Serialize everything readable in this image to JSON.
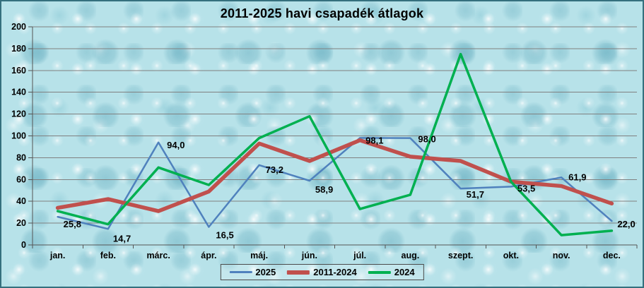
{
  "window": {
    "title": "2011-2025 havi csapadék átlagok"
  },
  "colors": {
    "series_2025": "#4F81BD",
    "series_2011_2024": "#C0504D",
    "series_2024": "#00B050",
    "gridline": "#808080",
    "axis": "#555555",
    "text": "#000000",
    "background": "#b7e2e9",
    "frame_border": "#35707e"
  },
  "chart_data": {
    "type": "line",
    "title": "2011-2025 havi csapadék átlagok",
    "categories": [
      "jan.",
      "feb.",
      "márc.",
      "ápr.",
      "máj.",
      "jún.",
      "júl.",
      "aug.",
      "szept.",
      "okt.",
      "nov.",
      "dec."
    ],
    "series": [
      {
        "name": "2025",
        "color": "#4F81BD",
        "stroke_width": 2.5,
        "values": [
          25.8,
          14.7,
          94.0,
          16.5,
          73.2,
          58.9,
          98.1,
          98.0,
          51.7,
          53.5,
          61.9,
          22.0
        ],
        "point_labels": [
          "25,8",
          "14,7",
          "94,0",
          "16,5",
          "73,2",
          "58,9",
          "98,1",
          "98,0",
          "51,7",
          "53,5",
          "61,9",
          "22,0"
        ]
      },
      {
        "name": "2011-2024",
        "color": "#C0504D",
        "stroke_width": 5.5,
        "values": [
          34,
          42,
          31,
          49,
          93,
          77,
          96,
          81,
          77,
          58,
          54,
          38
        ],
        "point_labels": []
      },
      {
        "name": "2024",
        "color": "#00B050",
        "stroke_width": 3.5,
        "values": [
          31,
          19,
          71,
          55,
          98,
          118,
          33,
          46,
          175,
          58,
          9,
          13
        ],
        "point_labels": []
      }
    ],
    "xlabel": "",
    "ylabel": "",
    "ylim": [
      0,
      200
    ],
    "ytick_interval": 20,
    "yticks": [
      "0",
      "20",
      "40",
      "60",
      "80",
      "100",
      "120",
      "140",
      "160",
      "180",
      "200"
    ],
    "grid": true,
    "legend_position": "bottom"
  },
  "legend": {
    "items": [
      {
        "label": "2025"
      },
      {
        "label": "2011-2024"
      },
      {
        "label": "2024"
      }
    ]
  }
}
